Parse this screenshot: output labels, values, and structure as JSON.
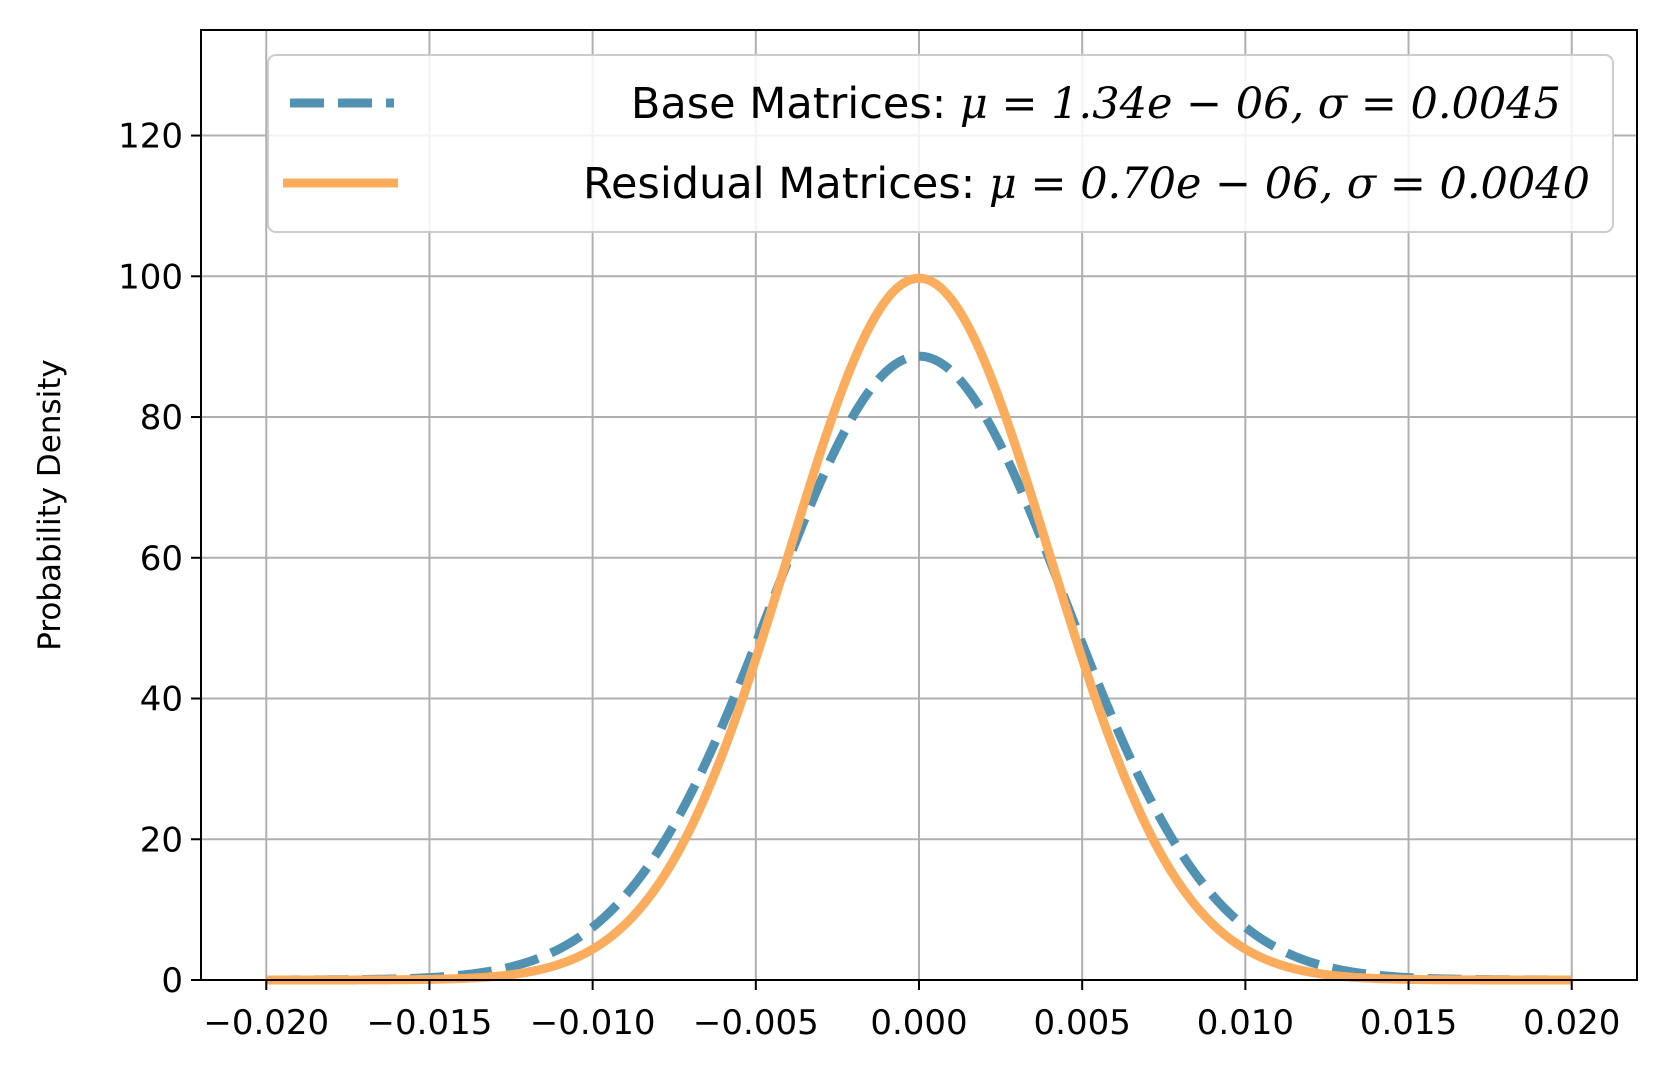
{
  "chart_data": {
    "type": "line",
    "title": "",
    "xlabel": "",
    "ylabel": "Probability Density",
    "xlim": [
      -0.022,
      0.022
    ],
    "ylim": [
      0,
      135
    ],
    "grid": true,
    "legend_position": "top",
    "x_ticks": [
      -0.02,
      -0.015,
      -0.01,
      -0.005,
      0.0,
      0.005,
      0.01,
      0.015,
      0.02
    ],
    "x_tick_labels": [
      "−0.020",
      "−0.015",
      "−0.010",
      "−0.005",
      "0.000",
      "0.005",
      "0.010",
      "0.015",
      "0.020"
    ],
    "y_ticks": [
      0,
      20,
      40,
      60,
      80,
      100,
      120
    ],
    "y_tick_labels": [
      "0",
      "20",
      "40",
      "60",
      "80",
      "100",
      "120"
    ],
    "x_range": [
      -0.02,
      0.02
    ],
    "series": [
      {
        "name": "Base Matrices: μ = 1.34e − 06, σ = 0.0045",
        "label_prefix": "Base Matrices: ",
        "label_math": "μ = 1.34e − 06, σ = 0.0045",
        "distribution": "normal",
        "mean": 1.34e-06,
        "std": 0.0045,
        "peak": 88.65,
        "color": "#5191B2",
        "line_style": "dashed"
      },
      {
        "name": "Residual Matrices: μ = 0.70e − 06, σ = 0.0040",
        "label_prefix": "Residual Matrices: ",
        "label_math": "μ = 0.70e − 06, σ = 0.0040",
        "distribution": "normal",
        "mean": 7e-07,
        "std": 0.004,
        "peak": 99.73,
        "color": "#FBAC5C",
        "line_style": "solid"
      }
    ]
  }
}
